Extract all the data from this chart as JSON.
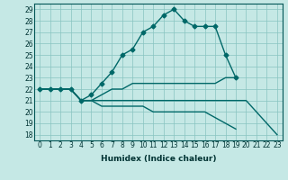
{
  "xlabel": "Humidex (Indice chaleur)",
  "ylabel": "",
  "xlim": [
    -0.5,
    23.5
  ],
  "ylim": [
    17.5,
    29.5
  ],
  "xticks": [
    0,
    1,
    2,
    3,
    4,
    5,
    6,
    7,
    8,
    9,
    10,
    11,
    12,
    13,
    14,
    15,
    16,
    17,
    18,
    19,
    20,
    21,
    22,
    23
  ],
  "yticks": [
    18,
    19,
    20,
    21,
    22,
    23,
    24,
    25,
    26,
    27,
    28,
    29
  ],
  "bg_color": "#c5e8e5",
  "grid_color": "#88c4c0",
  "line_color": "#006868",
  "line_width": 1.0,
  "marker": "D",
  "marker_size": 2.5,
  "lines": [
    {
      "x": [
        0,
        1,
        2,
        3,
        4,
        5,
        6,
        7,
        8,
        9,
        10,
        11,
        12,
        13,
        14,
        15,
        16,
        17,
        18,
        19
      ],
      "y": [
        22,
        22,
        22,
        22,
        21,
        21.5,
        22.5,
        23.5,
        25,
        25.5,
        27,
        27.5,
        28.5,
        29,
        28,
        27.5,
        27.5,
        27.5,
        25,
        23
      ],
      "has_markers": true
    },
    {
      "x": [
        0,
        1,
        2,
        3,
        4,
        5,
        6,
        7,
        8,
        9,
        10,
        11,
        12,
        13,
        14,
        15,
        16,
        17,
        18,
        19,
        20,
        21,
        22,
        23
      ],
      "y": [
        22,
        22,
        22,
        22,
        21,
        21,
        21.5,
        22,
        22,
        22.5,
        22.5,
        22.5,
        22.5,
        22.5,
        22.5,
        22.5,
        22.5,
        22.5,
        23,
        23,
        null,
        null,
        null,
        null
      ],
      "has_markers": false
    },
    {
      "x": [
        0,
        1,
        2,
        3,
        4,
        5,
        6,
        7,
        8,
        9,
        10,
        11,
        12,
        13,
        14,
        15,
        16,
        17,
        18,
        19,
        20,
        21,
        22,
        23
      ],
      "y": [
        22,
        22,
        22,
        22,
        21,
        21,
        21,
        21,
        21,
        21,
        21,
        21,
        21,
        21,
        21,
        21,
        21,
        21,
        21,
        21,
        21,
        20,
        19,
        18
      ],
      "has_markers": false
    },
    {
      "x": [
        0,
        1,
        2,
        3,
        4,
        5,
        6,
        7,
        8,
        9,
        10,
        11,
        12,
        13,
        14,
        15,
        16,
        17,
        18,
        19,
        20,
        21,
        22,
        23
      ],
      "y": [
        22,
        22,
        22,
        22,
        21,
        21,
        20.5,
        20.5,
        20.5,
        20.5,
        20.5,
        20,
        20,
        20,
        20,
        20,
        20,
        19.5,
        19,
        18.5,
        null,
        null,
        null,
        null
      ],
      "has_markers": false
    }
  ]
}
